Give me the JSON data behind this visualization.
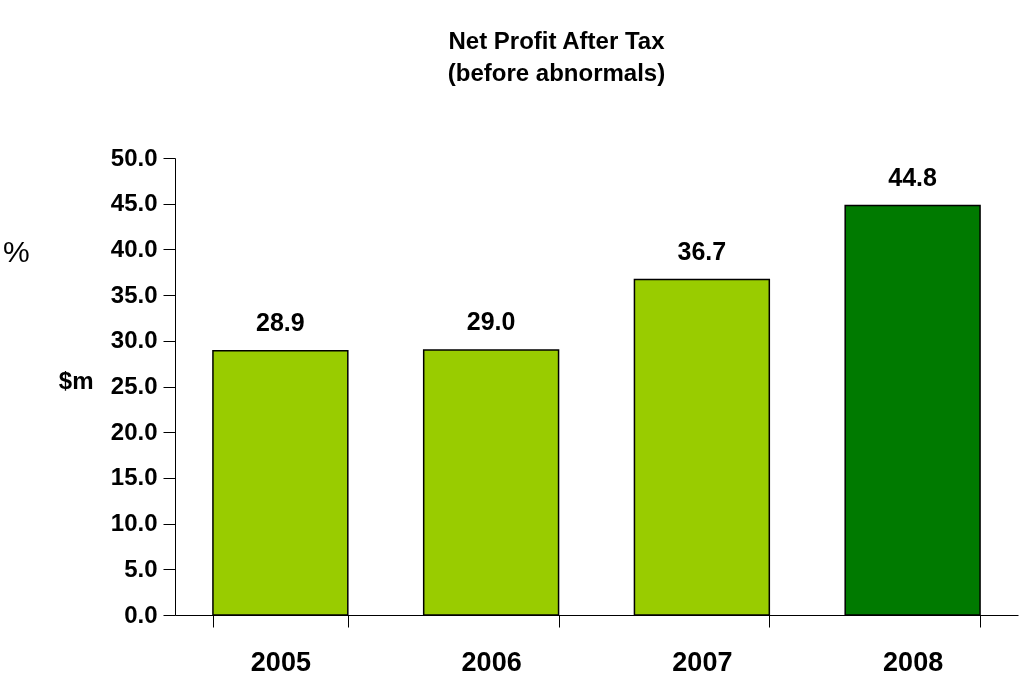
{
  "chart_data": {
    "type": "bar",
    "title": [
      "Net Profit After Tax",
      "(before abnormals)"
    ],
    "ylabel": "$m",
    "categories": [
      "2005",
      "2006",
      "2007",
      "2008"
    ],
    "values": [
      28.9,
      29.0,
      36.7,
      44.8
    ],
    "colors": [
      "#99cc00",
      "#99cc00",
      "#99cc00",
      "#007a00"
    ],
    "ylim": [
      0,
      50
    ],
    "yticks": [
      {
        "value": 0,
        "label": "0.0"
      },
      {
        "value": 5,
        "label": "5.0"
      },
      {
        "value": 10,
        "label": "10.0"
      },
      {
        "value": 15,
        "label": "15.0"
      },
      {
        "value": 20,
        "label": "20.0"
      },
      {
        "value": 25,
        "label": "25.0"
      },
      {
        "value": 30,
        "label": "30.0"
      },
      {
        "value": 35,
        "label": "35.0"
      },
      {
        "value": 40,
        "label": "40.0"
      },
      {
        "value": 45,
        "label": "45.0"
      },
      {
        "value": 50,
        "label": "50.0"
      }
    ],
    "value_labels": [
      "28.9",
      "29.0",
      "36.7",
      "44.8"
    ],
    "annotations": [
      "%"
    ],
    "grid": false
  }
}
